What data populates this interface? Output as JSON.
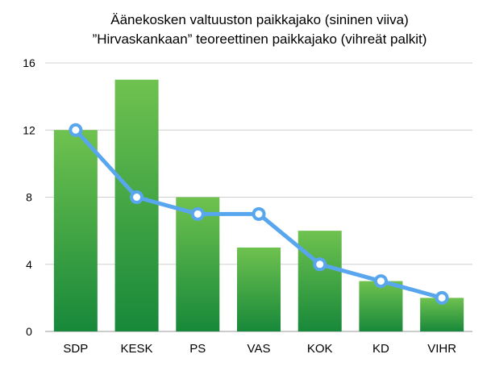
{
  "chart_data": {
    "type": "bar",
    "title_lines": [
      "Äänekosken valtuuston paikkajako (sininen viiva)",
      "”Hirvaskankaan” teoreettinen paikkajako (vihreät palkit)"
    ],
    "categories": [
      "SDP",
      "KESK",
      "PS",
      "VAS",
      "KOK",
      "KD",
      "VIHR"
    ],
    "series": [
      {
        "type": "bar",
        "values": [
          12,
          15,
          8,
          5,
          6,
          3,
          2
        ],
        "color": "#3f9d3f"
      },
      {
        "type": "line",
        "values": [
          12,
          8,
          7,
          7,
          4,
          3,
          2
        ],
        "color": "#58a6ee"
      }
    ],
    "yticks": [
      "0",
      "4",
      "8",
      "12",
      "16"
    ],
    "ylim": [
      0,
      16
    ],
    "grid": true,
    "legend": "none"
  }
}
